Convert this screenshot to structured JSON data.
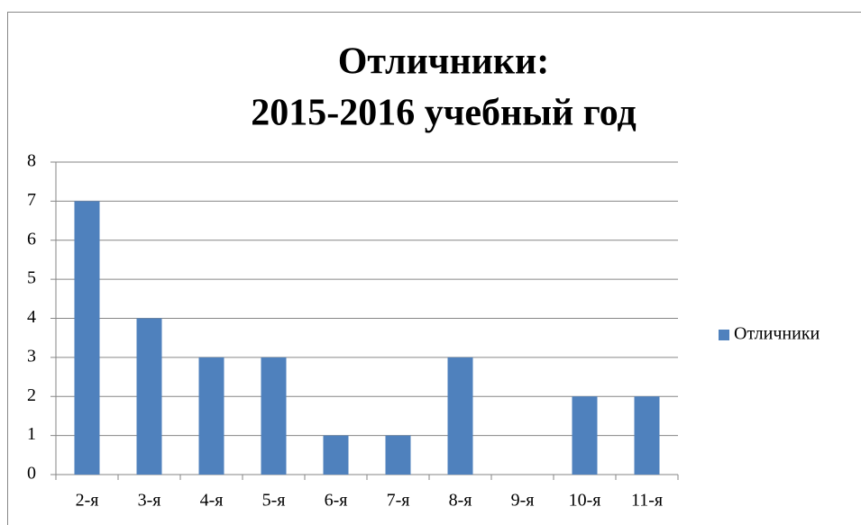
{
  "chart_data": {
    "type": "bar",
    "title": [
      "Отличники:",
      "2015-2016 учебный год"
    ],
    "categories": [
      "2-я",
      "3-я",
      "4-я",
      "5-я",
      "6-я",
      "7-я",
      "8-я",
      "9-я",
      "10-я",
      "11-я"
    ],
    "series": [
      {
        "name": "Отличники",
        "color": "#4f81bd",
        "values": [
          7,
          4,
          3,
          3,
          1,
          1,
          3,
          0,
          2,
          2
        ]
      }
    ],
    "ylim": [
      0,
      8
    ],
    "yticks": [
      0,
      1,
      2,
      3,
      4,
      5,
      6,
      7,
      8
    ],
    "grid": true,
    "legend": "right"
  }
}
